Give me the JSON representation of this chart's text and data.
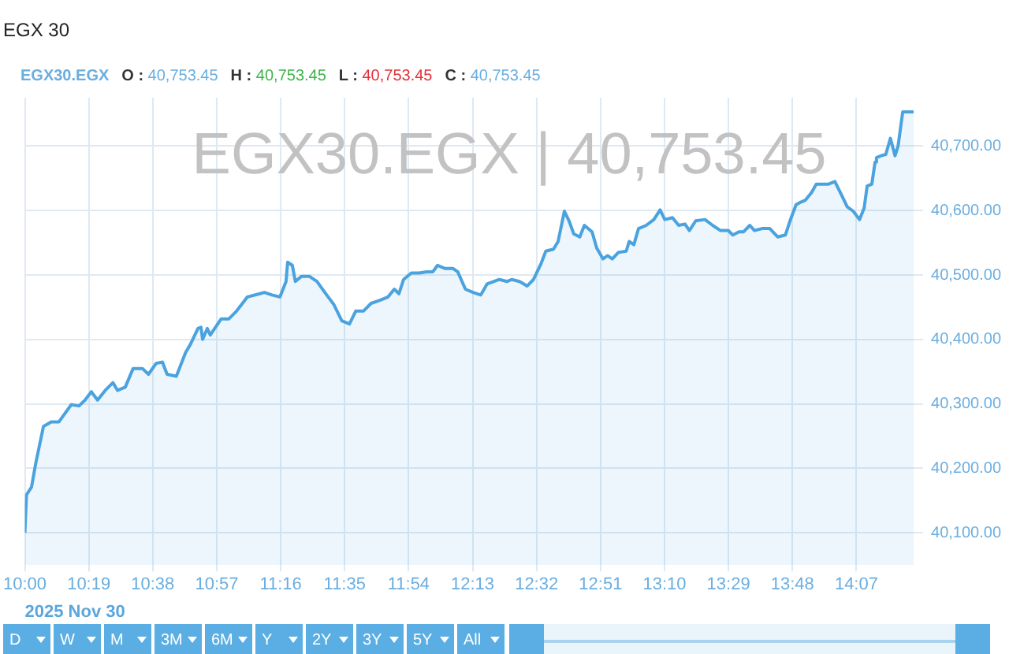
{
  "chart_data": {
    "type": "area",
    "title": "EGX 30",
    "subtitle": "EGX30.EGX",
    "xlabel": "2025 Nov 30",
    "annotations": [
      "O : 40,753.45",
      "H : 40,753.45",
      "L : 40,753.45",
      "C : 40,753.45",
      "EGX30.EGX | 40,753.45",
      "D",
      "W",
      "M",
      "3M",
      "6M",
      "Y",
      "2Y",
      "3Y",
      "5Y",
      "All"
    ],
    "x": [
      10,
      10.008,
      10.033,
      10.054,
      10.092,
      10.13,
      10.168,
      10.191,
      10.23,
      10.268,
      10.298,
      10.329,
      10.36,
      10.398,
      10.436,
      10.459,
      10.497,
      10.536,
      10.582,
      10.612,
      10.65,
      10.681,
      10.704,
      10.75,
      10.796,
      10.819,
      10.857,
      10.872,
      10.88,
      10.903,
      10.918,
      10.972,
      11.01,
      11.048,
      11.102,
      11.163,
      11.186,
      11.224,
      11.263,
      11.293,
      11.301,
      11.324,
      11.339,
      11.37,
      11.408,
      11.446,
      11.485,
      11.53,
      11.569,
      11.607,
      11.638,
      11.676,
      11.714,
      11.76,
      11.798,
      11.829,
      11.852,
      11.875,
      11.913,
      11.951,
      11.99,
      12.02,
      12.043,
      12.081,
      12.12,
      12.143,
      12.181,
      12.219,
      12.257,
      12.288,
      12.349,
      12.388,
      12.41,
      12.449,
      12.487,
      12.518,
      12.556,
      12.579,
      12.617,
      12.64,
      12.671,
      12.694,
      12.717,
      12.747,
      12.77,
      12.808,
      12.831,
      12.862,
      12.885,
      12.908,
      12.938,
      12.977,
      12.992,
      13.015,
      13.038,
      13.076,
      13.114,
      13.145,
      13.168,
      13.206,
      13.237,
      13.268,
      13.29,
      13.321,
      13.367,
      13.405,
      13.444,
      13.482,
      13.505,
      13.535,
      13.558,
      13.589,
      13.612,
      13.65,
      13.688,
      13.727,
      13.765,
      13.788,
      13.818,
      13.841,
      13.864,
      13.895,
      13.918,
      13.956,
      13.979,
      14.01,
      14.04,
      14.071,
      14.101,
      14.132,
      14.155,
      14.17,
      14.193,
      14.209,
      14.216,
      14.239,
      14.262,
      14.285,
      14.308,
      14.323,
      14.346,
      14.4
    ],
    "values": [
      40100,
      40159,
      40171,
      40208,
      40265,
      40272,
      40272,
      40282,
      40299,
      40297,
      40306,
      40319,
      40306,
      40321,
      40333,
      40321,
      40326,
      40355,
      40355,
      40346,
      40363,
      40365,
      40346,
      40343,
      40380,
      40392,
      40417,
      40419,
      40400,
      40417,
      40407,
      40432,
      40432,
      40444,
      40466,
      40471,
      40473,
      40469,
      40466,
      40490,
      40520,
      40515,
      40490,
      40498,
      40498,
      40490,
      40473,
      40454,
      40429,
      40424,
      40444,
      40444,
      40456,
      40461,
      40466,
      40478,
      40471,
      40493,
      40503,
      40503,
      40505,
      40505,
      40515,
      40510,
      40510,
      40505,
      40478,
      40473,
      40469,
      40486,
      40493,
      40490,
      40493,
      40490,
      40483,
      40493,
      40518,
      40537,
      40540,
      40552,
      40599,
      40584,
      40564,
      40559,
      40577,
      40567,
      40542,
      40525,
      40530,
      40525,
      40535,
      40537,
      40552,
      40547,
      40572,
      40577,
      40586,
      40601,
      40586,
      40589,
      40577,
      40579,
      40569,
      40584,
      40586,
      40577,
      40569,
      40569,
      40562,
      40567,
      40567,
      40577,
      40569,
      40572,
      40572,
      40559,
      40562,
      40584,
      40609,
      40613,
      40616,
      40628,
      40641,
      40641,
      40641,
      40645,
      40626,
      40606,
      40599,
      40586,
      40604,
      40638,
      40641,
      40675,
      40682,
      40685,
      40687,
      40712,
      40685,
      40700,
      40753,
      40753
    ],
    "color": "#4aa3df",
    "xlim": [
      10,
      14.4
    ],
    "xticks": [
      {
        "value": 10,
        "label": "10:00"
      },
      {
        "value": 10.3167,
        "label": "10:19"
      },
      {
        "value": 10.6333,
        "label": "10:38"
      },
      {
        "value": 10.95,
        "label": "10:57"
      },
      {
        "value": 11.2667,
        "label": "11:16"
      },
      {
        "value": 11.5833,
        "label": "11:35"
      },
      {
        "value": 11.9,
        "label": "11:54"
      },
      {
        "value": 12.2167,
        "label": "12:13"
      },
      {
        "value": 12.5333,
        "label": "12:32"
      },
      {
        "value": 12.85,
        "label": "12:51"
      },
      {
        "value": 13.1667,
        "label": "13:10"
      },
      {
        "value": 13.4833,
        "label": "13:29"
      },
      {
        "value": 13.8,
        "label": "13:48"
      },
      {
        "value": 14.1167,
        "label": "14:07"
      }
    ],
    "ylim": [
      40050,
      40775
    ],
    "yticks": [
      {
        "value": 40100,
        "label": "40,100.00"
      },
      {
        "value": 40200,
        "label": "40,200.00"
      },
      {
        "value": 40300,
        "label": "40,300.00"
      },
      {
        "value": 40400,
        "label": "40,400.00"
      },
      {
        "value": 40500,
        "label": "40,500.00"
      },
      {
        "value": 40600,
        "label": "40,600.00"
      },
      {
        "value": 40700,
        "label": "40,700.00"
      }
    ],
    "grid": true
  }
}
